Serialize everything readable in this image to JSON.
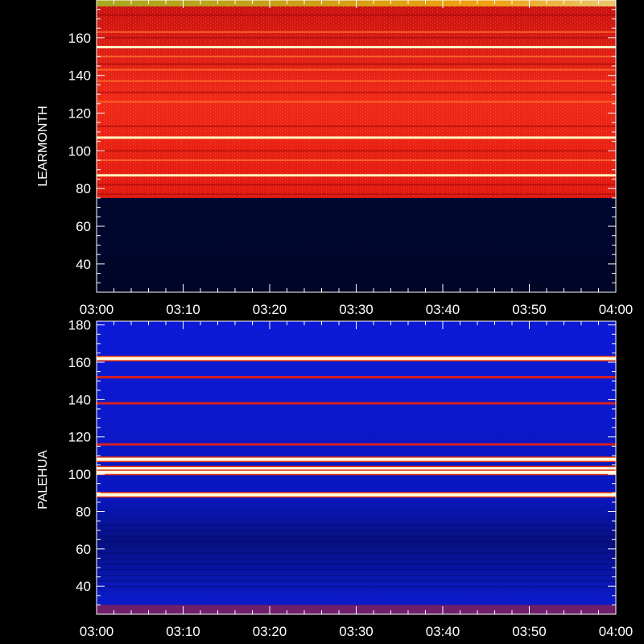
{
  "chart_data": [
    {
      "type": "heatmap",
      "station": "LEARMONTH",
      "ylabel": "LEARMONTH",
      "xlabel": "",
      "x_ticks": [
        "03:00",
        "03:10",
        "03:20",
        "03:30",
        "03:40",
        "03:50",
        "04:00"
      ],
      "y_ticks": [
        40,
        60,
        80,
        100,
        120,
        140,
        160
      ],
      "ylim": [
        25,
        180
      ],
      "colormap": "red-yellow-white",
      "background_color": "#000a3c",
      "signal_color": "#e01010",
      "signal_range": [
        75,
        180
      ],
      "bright_bands_mhz": [
        155,
        107,
        87
      ],
      "medium_bands_mhz": [
        163,
        150,
        143,
        137,
        126,
        95
      ]
    },
    {
      "type": "heatmap",
      "station": "PALEHUA",
      "ylabel": "PALEHUA",
      "xlabel": "",
      "x_ticks": [
        "03:00",
        "03:10",
        "03:20",
        "03:30",
        "03:40",
        "03:50",
        "04:00"
      ],
      "y_ticks": [
        40,
        60,
        80,
        100,
        120,
        140,
        160,
        180
      ],
      "ylim": [
        25,
        182
      ],
      "colormap": "blue-red-yellow-white",
      "background_color": "#0a18d0",
      "signal_color": "#d82020",
      "bright_bands_mhz": [
        162,
        108,
        103,
        101,
        89
      ],
      "medium_bands_mhz": [
        152,
        116,
        138
      ]
    }
  ]
}
